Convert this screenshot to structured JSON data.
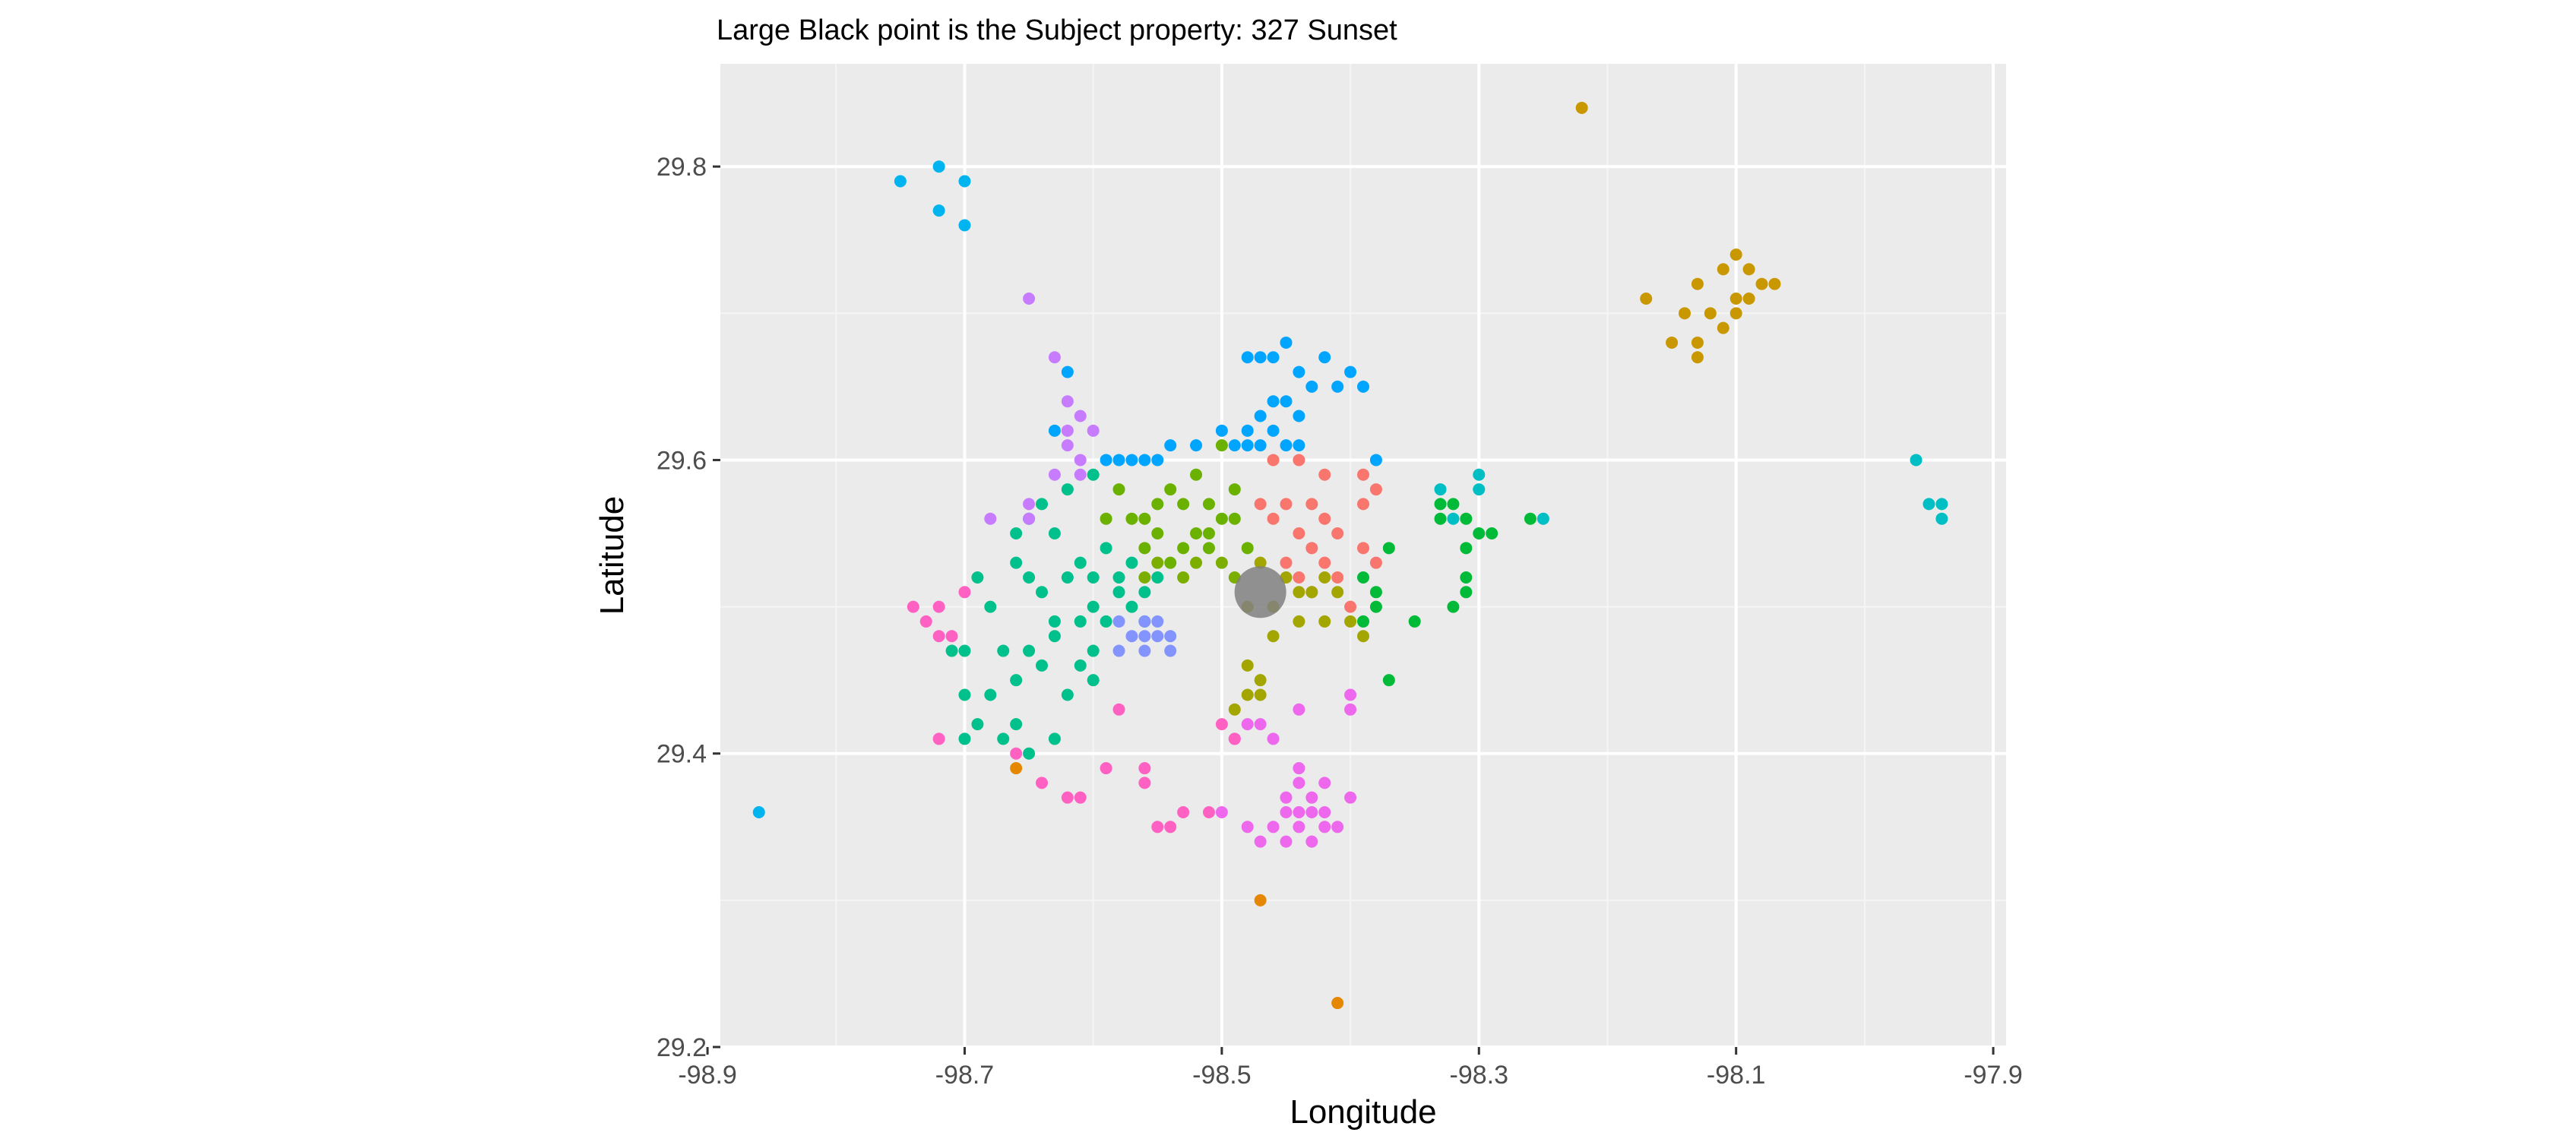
{
  "chart_data": {
    "type": "scatter",
    "title": "Large Black point is the Subject property: 327 Sunset",
    "xlabel": "Longitude",
    "ylabel": "Latitude",
    "xlim": [
      -98.89,
      -97.89
    ],
    "ylim": [
      29.2,
      29.87
    ],
    "xticks": [
      {
        "value": -98.9,
        "label": "-98.9"
      },
      {
        "value": -98.7,
        "label": "-98.7"
      },
      {
        "value": -98.5,
        "label": "-98.5"
      },
      {
        "value": -98.3,
        "label": "-98.3"
      },
      {
        "value": -98.1,
        "label": "-98.1"
      },
      {
        "value": -97.9,
        "label": "-97.9"
      }
    ],
    "yticks": [
      {
        "value": 29.2,
        "label": "29.2"
      },
      {
        "value": 29.4,
        "label": "29.4"
      },
      {
        "value": 29.6,
        "label": "29.6"
      },
      {
        "value": 29.8,
        "label": "29.8"
      }
    ],
    "grid": true,
    "legend": "none",
    "subject": {
      "x": -98.47,
      "y": 29.51,
      "color": "#808080"
    },
    "series": [
      {
        "color": "#F8766D",
        "points": [
          [
            -98.44,
            29.6
          ],
          [
            -98.46,
            29.6
          ],
          [
            -98.42,
            29.59
          ],
          [
            -98.39,
            29.59
          ],
          [
            -98.45,
            29.57
          ],
          [
            -98.47,
            29.57
          ],
          [
            -98.43,
            29.57
          ],
          [
            -98.39,
            29.57
          ],
          [
            -98.38,
            29.58
          ],
          [
            -98.46,
            29.56
          ],
          [
            -98.42,
            29.56
          ],
          [
            -98.41,
            29.55
          ],
          [
            -98.44,
            29.55
          ],
          [
            -98.43,
            29.54
          ],
          [
            -98.39,
            29.54
          ],
          [
            -98.41,
            29.52
          ],
          [
            -98.42,
            29.53
          ],
          [
            -98.44,
            29.52
          ],
          [
            -98.4,
            29.5
          ],
          [
            -98.43,
            29.51
          ],
          [
            -98.38,
            29.53
          ],
          [
            -98.45,
            29.53
          ]
        ]
      },
      {
        "color": "#E58700",
        "points": [
          [
            -98.66,
            29.39
          ],
          [
            -98.47,
            29.3
          ],
          [
            -98.41,
            29.23
          ]
        ]
      },
      {
        "color": "#C99800",
        "points": [
          [
            -98.22,
            29.84
          ],
          [
            -98.1,
            29.74
          ],
          [
            -98.09,
            29.73
          ],
          [
            -98.11,
            29.73
          ],
          [
            -98.08,
            29.72
          ],
          [
            -98.13,
            29.72
          ],
          [
            -98.1,
            29.71
          ],
          [
            -98.07,
            29.72
          ],
          [
            -98.17,
            29.71
          ],
          [
            -98.14,
            29.7
          ],
          [
            -98.12,
            29.7
          ],
          [
            -98.11,
            29.69
          ],
          [
            -98.13,
            29.68
          ],
          [
            -98.15,
            29.68
          ],
          [
            -98.13,
            29.67
          ],
          [
            -98.1,
            29.7
          ],
          [
            -98.09,
            29.71
          ]
        ]
      },
      {
        "color": "#A3A500",
        "points": [
          [
            -98.47,
            29.53
          ],
          [
            -98.46,
            29.5
          ],
          [
            -98.44,
            29.49
          ],
          [
            -98.42,
            29.49
          ],
          [
            -98.4,
            29.49
          ],
          [
            -98.43,
            29.51
          ],
          [
            -98.45,
            29.52
          ],
          [
            -98.41,
            29.51
          ],
          [
            -98.39,
            29.48
          ],
          [
            -98.46,
            29.48
          ],
          [
            -98.48,
            29.5
          ],
          [
            -98.48,
            29.46
          ],
          [
            -98.47,
            29.45
          ],
          [
            -98.48,
            29.44
          ],
          [
            -98.47,
            29.44
          ],
          [
            -98.49,
            29.43
          ],
          [
            -98.44,
            29.51
          ],
          [
            -98.42,
            29.52
          ]
        ]
      },
      {
        "color": "#6BB100",
        "points": [
          [
            -98.5,
            29.61
          ],
          [
            -98.52,
            29.59
          ],
          [
            -98.54,
            29.58
          ],
          [
            -98.53,
            29.57
          ],
          [
            -98.51,
            29.57
          ],
          [
            -98.5,
            29.56
          ],
          [
            -98.49,
            29.56
          ],
          [
            -98.51,
            29.55
          ],
          [
            -98.52,
            29.55
          ],
          [
            -98.53,
            29.54
          ],
          [
            -98.55,
            29.55
          ],
          [
            -98.54,
            29.53
          ],
          [
            -98.56,
            29.56
          ],
          [
            -98.48,
            29.54
          ],
          [
            -98.49,
            29.58
          ],
          [
            -98.51,
            29.54
          ],
          [
            -98.55,
            29.57
          ],
          [
            -98.57,
            29.56
          ],
          [
            -98.58,
            29.58
          ],
          [
            -98.59,
            29.56
          ],
          [
            -98.56,
            29.54
          ]
        ]
      },
      {
        "color": "#00BA38",
        "points": [
          [
            -98.33,
            29.56
          ],
          [
            -98.31,
            29.56
          ],
          [
            -98.32,
            29.57
          ],
          [
            -98.3,
            29.55
          ],
          [
            -98.31,
            29.54
          ],
          [
            -98.29,
            29.55
          ],
          [
            -98.26,
            29.56
          ],
          [
            -98.31,
            29.52
          ],
          [
            -98.31,
            29.51
          ],
          [
            -98.32,
            29.5
          ],
          [
            -98.35,
            29.49
          ],
          [
            -98.37,
            29.54
          ],
          [
            -98.38,
            29.51
          ],
          [
            -98.38,
            29.5
          ],
          [
            -98.39,
            29.49
          ],
          [
            -98.37,
            29.45
          ],
          [
            -98.33,
            29.57
          ],
          [
            -98.39,
            29.52
          ]
        ]
      },
      {
        "color": "#00C08B",
        "points": [
          [
            -98.6,
            29.59
          ],
          [
            -98.62,
            29.58
          ],
          [
            -98.64,
            29.57
          ],
          [
            -98.63,
            29.55
          ],
          [
            -98.65,
            29.56
          ],
          [
            -98.66,
            29.55
          ],
          [
            -98.66,
            29.53
          ],
          [
            -98.65,
            29.52
          ],
          [
            -98.64,
            29.51
          ],
          [
            -98.62,
            29.52
          ],
          [
            -98.6,
            29.52
          ],
          [
            -98.58,
            29.52
          ],
          [
            -98.57,
            29.5
          ],
          [
            -98.59,
            29.49
          ],
          [
            -98.61,
            29.49
          ],
          [
            -98.63,
            29.48
          ],
          [
            -98.65,
            29.47
          ],
          [
            -98.67,
            29.47
          ],
          [
            -98.66,
            29.45
          ],
          [
            -98.68,
            29.44
          ],
          [
            -98.7,
            29.44
          ],
          [
            -98.69,
            29.42
          ],
          [
            -98.67,
            29.41
          ],
          [
            -98.66,
            29.42
          ],
          [
            -98.65,
            29.4
          ],
          [
            -98.63,
            29.41
          ],
          [
            -98.62,
            29.44
          ],
          [
            -98.6,
            29.45
          ],
          [
            -98.61,
            29.46
          ],
          [
            -98.64,
            29.46
          ],
          [
            -98.7,
            29.47
          ],
          [
            -98.68,
            29.5
          ],
          [
            -98.56,
            29.51
          ],
          [
            -98.55,
            29.52
          ],
          [
            -98.57,
            29.53
          ],
          [
            -98.58,
            29.51
          ],
          [
            -98.59,
            29.54
          ],
          [
            -98.61,
            29.53
          ],
          [
            -98.6,
            29.5
          ],
          [
            -98.69,
            29.52
          ],
          [
            -98.71,
            29.47
          ],
          [
            -98.7,
            29.41
          ],
          [
            -98.63,
            29.49
          ],
          [
            -98.6,
            29.47
          ],
          [
            -98.56,
            29.49
          ]
        ]
      },
      {
        "color": "#00BFC4",
        "points": [
          [
            -98.33,
            29.58
          ],
          [
            -98.32,
            29.56
          ],
          [
            -98.3,
            29.58
          ],
          [
            -98.3,
            29.59
          ],
          [
            -98.25,
            29.56
          ],
          [
            -97.96,
            29.6
          ],
          [
            -97.95,
            29.57
          ],
          [
            -97.94,
            29.57
          ],
          [
            -97.94,
            29.56
          ]
        ]
      },
      {
        "color": "#00B4EF",
        "points": [
          [
            -98.75,
            29.79
          ],
          [
            -98.72,
            29.8
          ],
          [
            -98.7,
            29.79
          ],
          [
            -98.72,
            29.77
          ],
          [
            -98.7,
            29.76
          ],
          [
            -98.86,
            29.36
          ]
        ]
      },
      {
        "color": "#00A5FF",
        "points": [
          [
            -98.45,
            29.68
          ],
          [
            -98.46,
            29.67
          ],
          [
            -98.47,
            29.67
          ],
          [
            -98.48,
            29.67
          ],
          [
            -98.44,
            29.66
          ],
          [
            -98.42,
            29.67
          ],
          [
            -98.4,
            29.66
          ],
          [
            -98.39,
            29.65
          ],
          [
            -98.43,
            29.65
          ],
          [
            -98.41,
            29.65
          ],
          [
            -98.45,
            29.64
          ],
          [
            -98.46,
            29.64
          ],
          [
            -98.47,
            29.63
          ],
          [
            -98.44,
            29.63
          ],
          [
            -98.48,
            29.62
          ],
          [
            -98.46,
            29.62
          ],
          [
            -98.47,
            29.61
          ],
          [
            -98.48,
            29.61
          ],
          [
            -98.49,
            29.61
          ],
          [
            -98.45,
            29.61
          ],
          [
            -98.52,
            29.61
          ],
          [
            -98.54,
            29.61
          ],
          [
            -98.55,
            29.6
          ],
          [
            -98.56,
            29.6
          ],
          [
            -98.57,
            29.6
          ],
          [
            -98.58,
            29.6
          ],
          [
            -98.59,
            29.6
          ],
          [
            -98.62,
            29.66
          ],
          [
            -98.63,
            29.62
          ],
          [
            -98.38,
            29.6
          ],
          [
            -98.44,
            29.61
          ],
          [
            -98.5,
            29.62
          ]
        ]
      },
      {
        "color": "#7CAE00",
        "points": [
          [
            -98.52,
            29.53
          ],
          [
            -98.53,
            29.52
          ],
          [
            -98.5,
            29.53
          ],
          [
            -98.49,
            29.52
          ],
          [
            -98.55,
            29.53
          ],
          [
            -98.56,
            29.52
          ]
        ]
      },
      {
        "color": "#8494FF",
        "points": [
          [
            -98.57,
            29.48
          ],
          [
            -98.56,
            29.47
          ],
          [
            -98.55,
            29.48
          ],
          [
            -98.54,
            29.48
          ],
          [
            -98.56,
            29.49
          ],
          [
            -98.58,
            29.47
          ],
          [
            -98.58,
            29.49
          ],
          [
            -98.55,
            29.49
          ],
          [
            -98.54,
            29.47
          ],
          [
            -98.56,
            29.48
          ]
        ]
      },
      {
        "color": "#C77CFF",
        "points": [
          [
            -98.65,
            29.71
          ],
          [
            -98.63,
            29.67
          ],
          [
            -98.62,
            29.64
          ],
          [
            -98.61,
            29.63
          ],
          [
            -98.62,
            29.62
          ],
          [
            -98.6,
            29.62
          ],
          [
            -98.61,
            29.6
          ],
          [
            -98.63,
            29.59
          ],
          [
            -98.61,
            29.59
          ],
          [
            -98.65,
            29.57
          ],
          [
            -98.65,
            29.56
          ],
          [
            -98.68,
            29.56
          ],
          [
            -98.62,
            29.61
          ]
        ]
      },
      {
        "color": "#ED68ED",
        "points": [
          [
            -98.44,
            29.38
          ],
          [
            -98.43,
            29.37
          ],
          [
            -98.42,
            29.38
          ],
          [
            -98.45,
            29.37
          ],
          [
            -98.44,
            29.36
          ],
          [
            -98.43,
            29.36
          ],
          [
            -98.42,
            29.35
          ],
          [
            -98.41,
            29.35
          ],
          [
            -98.44,
            29.35
          ],
          [
            -98.45,
            29.34
          ],
          [
            -98.43,
            29.34
          ],
          [
            -98.42,
            29.36
          ],
          [
            -98.46,
            29.35
          ],
          [
            -98.4,
            29.37
          ],
          [
            -98.44,
            29.39
          ],
          [
            -98.47,
            29.42
          ],
          [
            -98.46,
            29.41
          ],
          [
            -98.44,
            29.43
          ],
          [
            -98.48,
            29.42
          ],
          [
            -98.49,
            29.41
          ],
          [
            -98.5,
            29.36
          ],
          [
            -98.48,
            29.35
          ],
          [
            -98.47,
            29.34
          ],
          [
            -98.4,
            29.43
          ],
          [
            -98.4,
            29.44
          ],
          [
            -98.45,
            29.36
          ]
        ]
      },
      {
        "color": "#FF61C3",
        "points": [
          [
            -98.72,
            29.5
          ],
          [
            -98.73,
            29.49
          ],
          [
            -98.71,
            29.48
          ],
          [
            -98.74,
            29.5
          ],
          [
            -98.72,
            29.48
          ],
          [
            -98.7,
            29.51
          ],
          [
            -98.72,
            29.41
          ],
          [
            -98.66,
            29.4
          ],
          [
            -98.64,
            29.38
          ],
          [
            -98.62,
            29.37
          ],
          [
            -98.61,
            29.37
          ],
          [
            -98.59,
            29.39
          ],
          [
            -98.58,
            29.43
          ],
          [
            -98.56,
            29.39
          ],
          [
            -98.56,
            29.38
          ],
          [
            -98.55,
            29.35
          ],
          [
            -98.54,
            29.35
          ],
          [
            -98.53,
            29.36
          ],
          [
            -98.51,
            29.36
          ],
          [
            -98.5,
            29.42
          ],
          [
            -98.49,
            29.41
          ]
        ]
      }
    ]
  }
}
